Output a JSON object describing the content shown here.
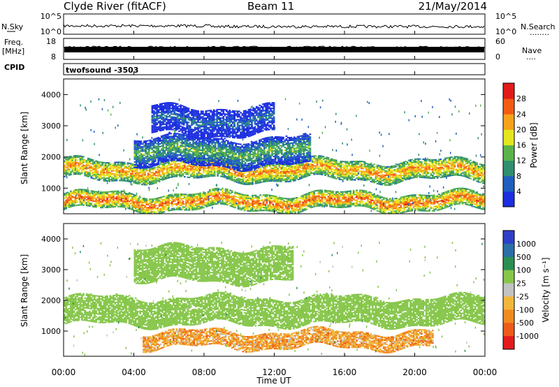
{
  "header": {
    "radar_title": "Clyde River (fitACF)",
    "beam": "Beam 11",
    "date": "21/May/2014"
  },
  "noise_panel": {
    "left_label": "N.Sky",
    "left_ticks": [
      "10^5",
      "10^0"
    ],
    "right_label": "N.Search",
    "right_ticks": [
      "10^5",
      "10^0"
    ],
    "right_dots": "........"
  },
  "freq_panel": {
    "left_label_1": "Freq.",
    "left_label_2": "[MHz]",
    "left_ticks": [
      "18",
      "8"
    ],
    "right_label": "Nave",
    "right_ticks": [
      "60",
      "0"
    ],
    "right_dots": "...."
  },
  "cpid_panel": {
    "label": "CPID",
    "value": "twofsound -3503"
  },
  "colors": {
    "power_scale": [
      "#1c2ee0",
      "#1f5fc0",
      "#2f8f6f",
      "#5ab44a",
      "#e6e61e",
      "#f7a21b",
      "#f25b14",
      "#e11a1a"
    ],
    "velocity_scale": [
      "#2e3fc9",
      "#2c6ea6",
      "#2a8f50",
      "#86c64a",
      "#c2c2c2",
      "#f2b63a",
      "#f08a1e",
      "#ee5a18",
      "#e31b1b"
    ],
    "line": "#000000"
  },
  "chart_data": [
    {
      "type": "heatmap",
      "title": "",
      "ylabel": "Slant Range [km]",
      "yticks": [
        "1000",
        "2000",
        "3000",
        "4000"
      ],
      "ylim": [
        180,
        4500
      ],
      "xlim": [
        "00:00",
        "24:00"
      ],
      "colorbar": {
        "label": "Power [dB]",
        "ticks": [
          "4",
          "8",
          "12",
          "16",
          "20",
          "24",
          "28"
        ],
        "range": [
          0,
          32
        ]
      },
      "bands": [
        {
          "t_start": 0.0,
          "t_end": 24.0,
          "r_low": 300,
          "r_high": 800,
          "power": 26
        },
        {
          "t_start": 0.0,
          "t_end": 24.0,
          "r_low": 1250,
          "r_high": 1850,
          "power": 24
        },
        {
          "t_start": 4.0,
          "t_end": 14.0,
          "r_low": 1700,
          "r_high": 2600,
          "power": 14
        },
        {
          "t_start": 5.0,
          "t_end": 12.0,
          "r_low": 2700,
          "r_high": 3600,
          "power": 8
        }
      ]
    },
    {
      "type": "heatmap",
      "title": "",
      "ylabel": "Slant Range [km]",
      "yticks": [
        "1000",
        "2000",
        "3000",
        "4000"
      ],
      "ylim": [
        180,
        4500
      ],
      "xlim": [
        "00:00",
        "24:00"
      ],
      "xlabel": "Time UT",
      "xticks": [
        "00:00",
        "04:00",
        "08:00",
        "12:00",
        "16:00",
        "20:00",
        "00:00"
      ],
      "colorbar": {
        "label": "Velocity [m s⁻¹]",
        "ticks": [
          "1000",
          "500",
          "100",
          "25",
          "-25",
          "-100",
          "-500",
          "-1000"
        ]
      },
      "bands": [
        {
          "t_start": 0.0,
          "t_end": 24.0,
          "r_low": 1200,
          "r_high": 2100,
          "velocity": 0
        },
        {
          "t_start": 4.5,
          "t_end": 21.0,
          "r_low": 450,
          "r_high": 950,
          "velocity": -300
        },
        {
          "t_start": 4.0,
          "t_end": 13.0,
          "r_low": 2600,
          "r_high": 3700,
          "velocity": 0
        }
      ]
    }
  ]
}
